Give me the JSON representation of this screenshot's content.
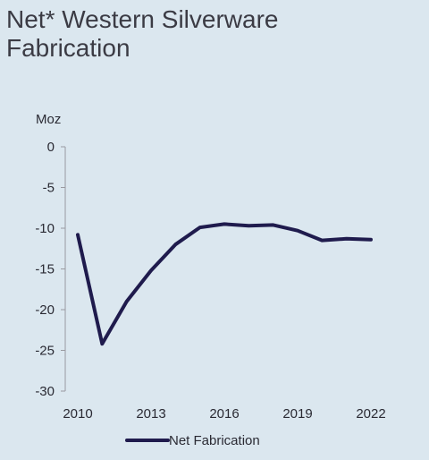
{
  "chart_data": {
    "type": "line",
    "title": "Net* Western Silverware Fabrication",
    "ylabel": "Moz",
    "xlabel": "",
    "ylim": [
      -30,
      0
    ],
    "yticks": [
      0,
      -5,
      -10,
      -15,
      -20,
      -25,
      -30
    ],
    "xlim": [
      2010,
      2022
    ],
    "xticks": [
      2010,
      2013,
      2016,
      2019,
      2022
    ],
    "grid": false,
    "legend_position": "bottom",
    "colors": {
      "line": "#1f1b4d",
      "axis": "#9a9aa0",
      "background": "#dbe7ef"
    },
    "series": [
      {
        "name": "Net Fabrication",
        "x": [
          2010,
          2011,
          2012,
          2013,
          2014,
          2015,
          2016,
          2017,
          2018,
          2019,
          2020,
          2021,
          2022
        ],
        "values": [
          -10.8,
          -24.2,
          -19.0,
          -15.2,
          -12.0,
          -9.9,
          -9.5,
          -9.7,
          -9.6,
          -10.3,
          -11.5,
          -11.3,
          -11.4
        ]
      }
    ]
  }
}
